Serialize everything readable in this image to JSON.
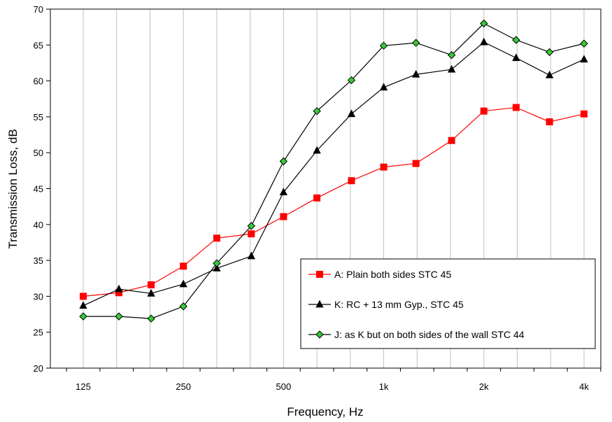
{
  "chart_data": {
    "type": "line",
    "xlabel": "Frequency, Hz",
    "ylabel": "Transmission Loss, dB",
    "ylim": [
      20,
      70
    ],
    "y_ticks": [
      20,
      25,
      30,
      35,
      40,
      45,
      50,
      55,
      60,
      65,
      70
    ],
    "x": [
      125,
      160,
      200,
      250,
      315,
      400,
      500,
      630,
      800,
      1000,
      1250,
      1600,
      2000,
      2500,
      3150,
      4000
    ],
    "x_tick_labels": [
      "125",
      "250",
      "500",
      "1k",
      "2k",
      "4k"
    ],
    "x_tick_values": [
      125,
      250,
      500,
      1000,
      2000,
      4000
    ],
    "x_scale": "log",
    "grid": "vertical",
    "legend_position": "bottom-right",
    "series": [
      {
        "name": "A: Plain both sides STC 45",
        "color": "#ff0000",
        "marker": "square",
        "marker_fill": "#ff0000",
        "values": [
          30.0,
          30.5,
          31.6,
          34.2,
          38.1,
          38.7,
          41.1,
          43.7,
          46.1,
          48.0,
          48.5,
          51.7,
          55.8,
          56.3,
          54.3,
          55.4
        ]
      },
      {
        "name": "K: RC + 13 mm Gyp., STC 45",
        "color": "#000000",
        "marker": "triangle",
        "marker_fill": "#000000",
        "values": [
          28.7,
          31.0,
          30.4,
          31.7,
          33.9,
          35.6,
          44.5,
          50.3,
          55.4,
          59.1,
          60.9,
          61.6,
          65.4,
          63.2,
          60.8,
          63.0
        ]
      },
      {
        "name": "J: as K but on both sides of the wall STC 44",
        "color": "#000000",
        "marker": "diamond",
        "marker_fill": "#33cc33",
        "values": [
          27.2,
          27.2,
          26.9,
          28.6,
          34.6,
          39.8,
          48.8,
          55.8,
          60.1,
          64.9,
          65.3,
          63.6,
          68.0,
          65.7,
          64.0,
          65.2
        ]
      }
    ]
  }
}
